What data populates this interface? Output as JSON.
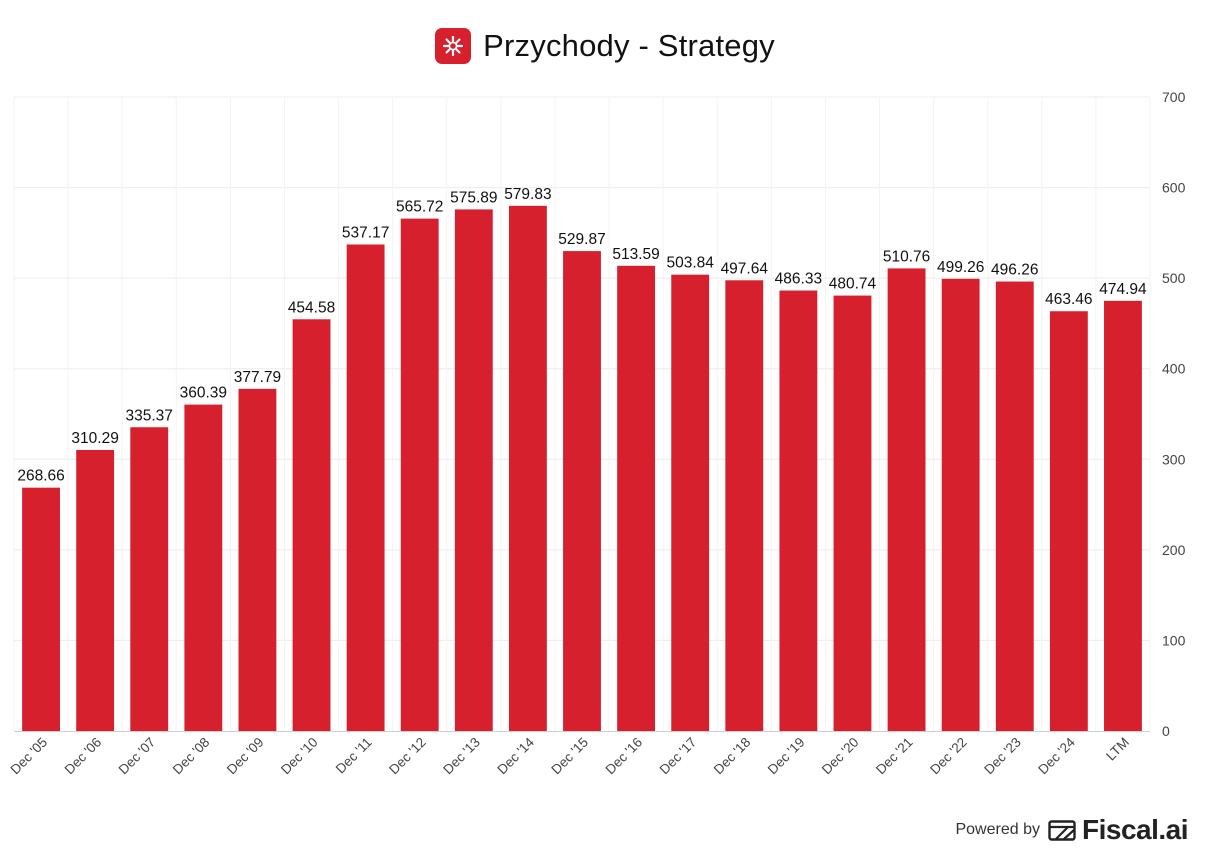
{
  "header": {
    "title": "Przychody - Strategy",
    "logo_icon": "strategy-logo-icon"
  },
  "footer": {
    "powered_by": "Powered by",
    "brand": "Fiscal.ai",
    "brand_icon": "fiscal-ai-logo-icon"
  },
  "colors": {
    "bar": "#d7202e",
    "grid": "#ececec",
    "text": "#111111",
    "axis_text": "#444444"
  },
  "chart_data": {
    "type": "bar",
    "title": "Przychody - Strategy",
    "xlabel": "",
    "ylabel": "",
    "categories": [
      "Dec '05",
      "Dec '06",
      "Dec '07",
      "Dec '08",
      "Dec '09",
      "Dec '10",
      "Dec '11",
      "Dec '12",
      "Dec '13",
      "Dec '14",
      "Dec '15",
      "Dec '16",
      "Dec '17",
      "Dec '18",
      "Dec '19",
      "Dec '20",
      "Dec '21",
      "Dec '22",
      "Dec '23",
      "Dec '24",
      "LTM"
    ],
    "values": [
      268.66,
      310.29,
      335.37,
      360.39,
      377.79,
      454.58,
      537.17,
      565.72,
      575.89,
      579.83,
      529.87,
      513.59,
      503.84,
      497.64,
      486.33,
      480.74,
      510.76,
      499.26,
      496.26,
      463.46,
      474.94
    ],
    "value_labels": [
      "268.66",
      "310.29",
      "335.37",
      "360.39",
      "377.79",
      "454.58",
      "537.17",
      "565.72",
      "575.89",
      "579.83",
      "529.87",
      "513.59",
      "503.84",
      "497.64",
      "486.33",
      "480.74",
      "510.76",
      "499.26",
      "496.26",
      "463.46",
      "474.94"
    ],
    "ylim": [
      0,
      700
    ],
    "yticks": [
      0,
      100,
      200,
      300,
      400,
      500,
      600,
      700
    ],
    "y_axis_side": "right",
    "grid": true,
    "legend": "none"
  }
}
